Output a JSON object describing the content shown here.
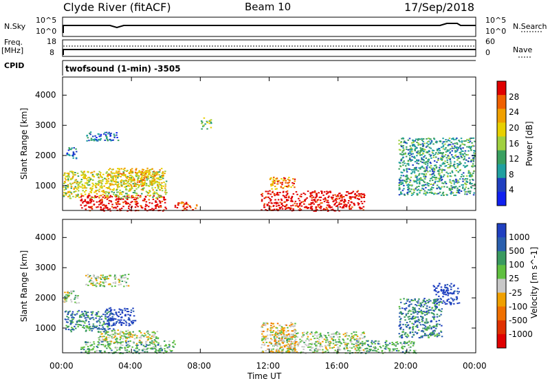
{
  "header": {
    "title_left": "Clyde River (fitACF)",
    "title_center": "Beam 10",
    "title_right": "17/Sep/2018"
  },
  "top_panels": {
    "nsky_label": "N.Sky",
    "nsky_ticks": [
      "10^5",
      "10^0"
    ],
    "nsearch_label": "N.Search",
    "nsearch_ticks": [
      "10^5",
      "10^0"
    ],
    "freq_label": "Freq.",
    "freq_unit": "[MHz]",
    "freq_ticks": [
      "18",
      "8"
    ],
    "nave_label": "Nave",
    "nave_ticks": [
      "60",
      "0"
    ],
    "cpid_label": "CPID",
    "cpid_text": "twofsound (1-min) -3505"
  },
  "chart_data": [
    {
      "type": "heatmap",
      "name": "power",
      "ylabel": "Slant Range [km]",
      "yticks": [
        1000,
        2000,
        3000,
        4000
      ],
      "ylim": [
        180,
        4600
      ],
      "xlim": [
        0,
        24
      ],
      "colorbar_label": "Power [dB]",
      "colorbar_ticks": [
        "28",
        "24",
        "20",
        "16",
        "12",
        "8",
        "4"
      ],
      "colorbar_colors": [
        "#e00000",
        "#f06000",
        "#f0a000",
        "#e8d000",
        "#a0d040",
        "#3aa060",
        "#20a0a0",
        "#2040c0",
        "#1020f0"
      ],
      "regions": [
        {
          "t0": 1.0,
          "t1": 6.0,
          "r0": 180,
          "r1": 700,
          "level": 0
        },
        {
          "t0": 6.5,
          "t1": 7.8,
          "r0": 180,
          "r1": 500,
          "level": 1
        },
        {
          "t0": 11.5,
          "t1": 17.5,
          "r0": 180,
          "r1": 850,
          "level": 0
        },
        {
          "t0": 0.0,
          "t1": 6.0,
          "r0": 600,
          "r1": 1500,
          "level": 4
        },
        {
          "t0": 2.5,
          "t1": 5.8,
          "r0": 1000,
          "r1": 1600,
          "level": 3
        },
        {
          "t0": 0.2,
          "t1": 0.8,
          "r0": 1900,
          "r1": 2300,
          "level": 7
        },
        {
          "t0": 1.2,
          "t1": 3.2,
          "r0": 2500,
          "r1": 2800,
          "level": 7
        },
        {
          "t0": 8.0,
          "t1": 8.6,
          "r0": 2900,
          "r1": 3300,
          "level": 5
        },
        {
          "t0": 12.0,
          "t1": 13.5,
          "r0": 900,
          "r1": 1300,
          "level": 2
        },
        {
          "t0": 19.5,
          "t1": 23.9,
          "r0": 700,
          "r1": 2600,
          "level": 6
        }
      ]
    },
    {
      "type": "heatmap",
      "name": "velocity",
      "ylabel": "Slant Range [km]",
      "yticks": [
        1000,
        2000,
        3000,
        4000
      ],
      "ylim": [
        180,
        4600
      ],
      "xlim": [
        0,
        24
      ],
      "xticks": [
        "00:00",
        "04:00",
        "08:00",
        "12:00",
        "16:00",
        "20:00",
        "00:00"
      ],
      "xlabel": "Time UT",
      "colorbar_label": "Velocity [m s^-1]",
      "colorbar_ticks": [
        "1000",
        "500",
        "100",
        "25",
        "-25",
        "-100",
        "-500",
        "-1000"
      ],
      "colorbar_colors": [
        "#2040c0",
        "#2a5fae",
        "#3a9a60",
        "#60c040",
        "#c8c8c8",
        "#f0a000",
        "#f07000",
        "#e03000",
        "#e00000"
      ],
      "regions": [
        {
          "t0": 1.0,
          "t1": 6.5,
          "r0": 180,
          "r1": 600,
          "level": 3
        },
        {
          "t0": 2.0,
          "t1": 5.5,
          "r0": 500,
          "r1": 950,
          "level": 4
        },
        {
          "t0": 0.1,
          "t1": 3.0,
          "r0": 900,
          "r1": 1600,
          "level": 2
        },
        {
          "t0": 2.5,
          "t1": 4.2,
          "r0": 1100,
          "r1": 1700,
          "level": 0
        },
        {
          "t0": 0.0,
          "t1": 0.9,
          "r0": 1850,
          "r1": 2250,
          "level": 4
        },
        {
          "t0": 1.3,
          "t1": 3.8,
          "r0": 2400,
          "r1": 2800,
          "level": 4
        },
        {
          "t0": 12.0,
          "t1": 17.5,
          "r0": 180,
          "r1": 900,
          "level": 4
        },
        {
          "t0": 11.5,
          "t1": 13.5,
          "r0": 200,
          "r1": 1200,
          "level": 5
        },
        {
          "t0": 17.0,
          "t1": 20.5,
          "r0": 180,
          "r1": 600,
          "level": 3
        },
        {
          "t0": 21.5,
          "t1": 23.0,
          "r0": 1800,
          "r1": 2500,
          "level": 0
        },
        {
          "t0": 19.5,
          "t1": 22.0,
          "r0": 700,
          "r1": 2000,
          "level": 2
        }
      ]
    }
  ]
}
